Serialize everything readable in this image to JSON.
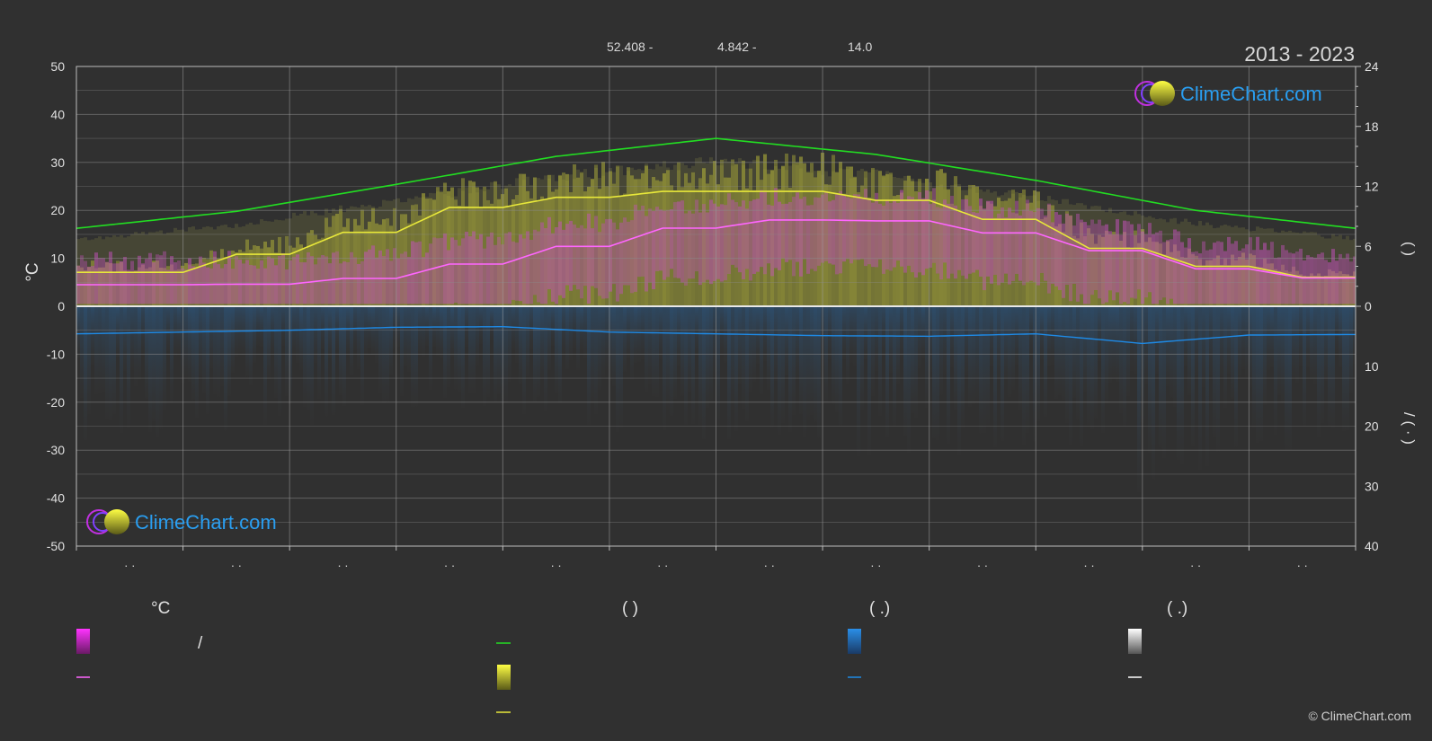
{
  "header": {
    "lat": "52.408 -",
    "lon": "4.842 -",
    "alt": "14.0",
    "years": "2013 - 2023"
  },
  "watermark": "ClimeChart.com",
  "footer": "© ClimeChart.com",
  "left_axis": {
    "label": "°C",
    "ticks": [
      "50",
      "40",
      "30",
      "20",
      "10",
      "0",
      "-10",
      "-20",
      "-30",
      "-40",
      "-50"
    ]
  },
  "right_axis": {
    "upper_label": "(   )",
    "lower_label": "/ (  ·  )",
    "upper_ticks": [
      "24",
      "18",
      "12",
      "6",
      "0"
    ],
    "lower_ticks": [
      "10",
      "20",
      "30",
      "40"
    ]
  },
  "x_ticks": [
    "· ·",
    "· ·",
    "· ·",
    "· ·",
    "· ·",
    "· ·",
    "· ·",
    "· ·",
    "· ·",
    "· ·",
    "· ·",
    "· ·"
  ],
  "legend": {
    "col1_title": "°C",
    "col1_range_sep": "/",
    "col2_title": "(          )",
    "col3_title": "(   .)",
    "col4_title": "(   .)"
  },
  "colors": {
    "background": "#303030",
    "daylight": "#22dd22",
    "sunshine": "#e8e83a",
    "temp_mean": "#ff66ff",
    "precip": "#1e8ae6",
    "temp_band": "#d040c8",
    "sun_band": "#b8b83a",
    "zero_line": "#e8e8e8"
  },
  "chart_data": {
    "type": "line",
    "ylim_left": [
      -50,
      50
    ],
    "ylim_right_upper": [
      0,
      24
    ],
    "ylim_right_lower": [
      0,
      40
    ],
    "grid": true,
    "series": [
      {
        "key": "daylight",
        "x": [
          0,
          1.5,
          3,
          4.5,
          6,
          7.5,
          9,
          10.5,
          12
        ],
        "values": [
          7.8,
          9.5,
          12.2,
          15.0,
          16.8,
          15.2,
          12.6,
          9.6,
          7.8
        ],
        "axis": "right_upper"
      },
      {
        "key": "sunshine",
        "x": [
          0,
          0.5,
          1,
          1.5,
          2,
          2.5,
          3,
          3.5,
          4,
          4.5,
          5,
          5.5,
          6,
          6.5,
          7,
          7.5,
          8,
          8.5,
          9,
          9.5,
          10,
          10.5,
          11,
          11.5,
          12
        ],
        "values": [
          3.4,
          3.4,
          3.4,
          5.2,
          5.2,
          7.4,
          7.4,
          9.9,
          9.9,
          10.9,
          10.9,
          11.5,
          11.5,
          11.5,
          11.5,
          10.6,
          10.6,
          8.7,
          8.7,
          5.8,
          5.8,
          4.0,
          4.0,
          2.9,
          2.9
        ],
        "axis": "right_upper"
      },
      {
        "key": "temp_mean",
        "x": [
          0,
          0.5,
          1,
          1.5,
          2,
          2.5,
          3,
          3.5,
          4,
          4.5,
          5,
          5.5,
          6,
          6.5,
          7,
          7.5,
          8,
          8.5,
          9,
          9.5,
          10,
          10.5,
          11,
          11.5,
          12
        ],
        "values": [
          4.5,
          4.5,
          4.5,
          4.6,
          4.6,
          5.8,
          5.8,
          8.8,
          8.8,
          12.5,
          12.5,
          16.3,
          16.3,
          18.0,
          18.0,
          17.8,
          17.8,
          15.3,
          15.3,
          11.6,
          11.6,
          7.8,
          7.8,
          5.9,
          5.9
        ],
        "axis": "left"
      },
      {
        "key": "precip",
        "x": [
          0,
          1,
          2,
          3,
          4,
          5,
          6,
          7,
          8,
          9,
          10,
          11,
          12
        ],
        "values": [
          4.6,
          4.3,
          4.0,
          3.5,
          3.4,
          4.3,
          4.6,
          4.9,
          5.0,
          4.6,
          6.2,
          4.8,
          4.7
        ],
        "axis": "right_lower"
      }
    ]
  }
}
